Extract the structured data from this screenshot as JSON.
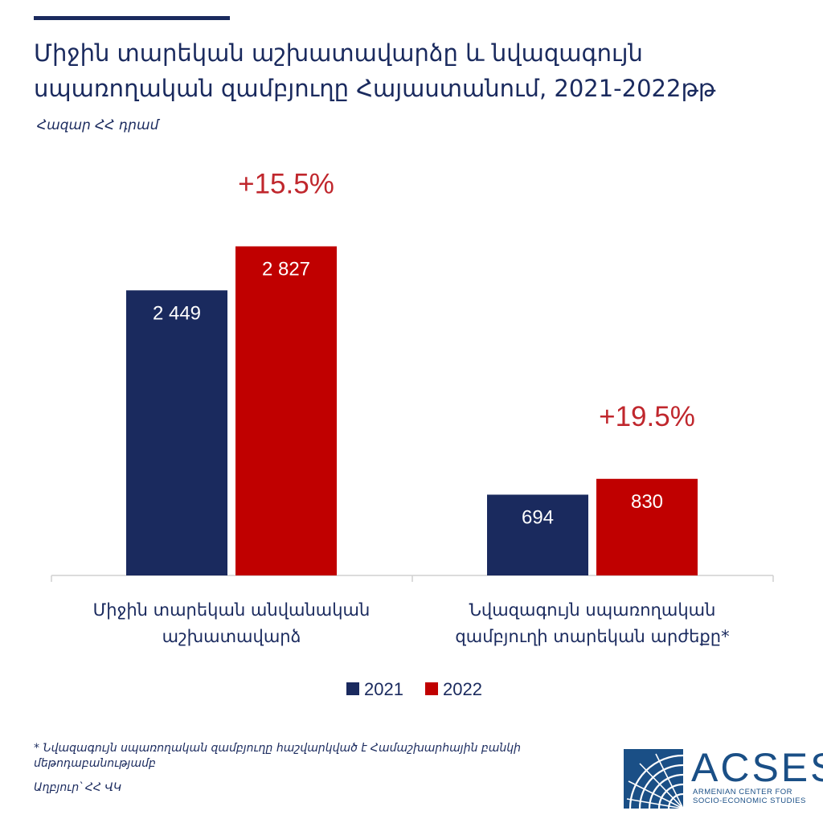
{
  "title": "Միջին տարեկան աշխատավարձը և նվազագույն սպառողական զամբյուղը Հայաստանում, 2021-2022թթ",
  "unit": "Հազար ՀՀ դրամ",
  "footnote": "* Նվազագույն սպառողական զամբյուղը հաշվարկված է Համաշխարհային բանկի մեթոդաբանությամբ",
  "source": "Աղբյուր՝ ՀՀ ՎԿ",
  "logo": {
    "name": "ACSES",
    "subtitle_line1": "ARMENIAN CENTER FOR",
    "subtitle_line2": "SOCIO-ECONOMIC STUDIES",
    "color": "#1a4f86"
  },
  "chart_data": {
    "type": "bar",
    "categories": [
      [
        "Միջին տարեկան անվանական",
        "աշխատավարձ"
      ],
      [
        "Նվազագույն սպառողական",
        "զամբյուղի տարեկան արժեքը*"
      ]
    ],
    "series": [
      {
        "name": "2021",
        "color": "#1a2a5e",
        "values": [
          2449,
          694
        ],
        "labels": [
          "2 449",
          "694"
        ]
      },
      {
        "name": "2022",
        "color": "#c00000",
        "values": [
          2827,
          830
        ],
        "labels": [
          "2 827",
          "830"
        ]
      }
    ],
    "annotations": [
      "+15.5%",
      "+19.5%"
    ],
    "annotation_color": "#c0272d",
    "ylim": [
      0,
      3300
    ],
    "legend_position": "bottom",
    "grid": false
  }
}
